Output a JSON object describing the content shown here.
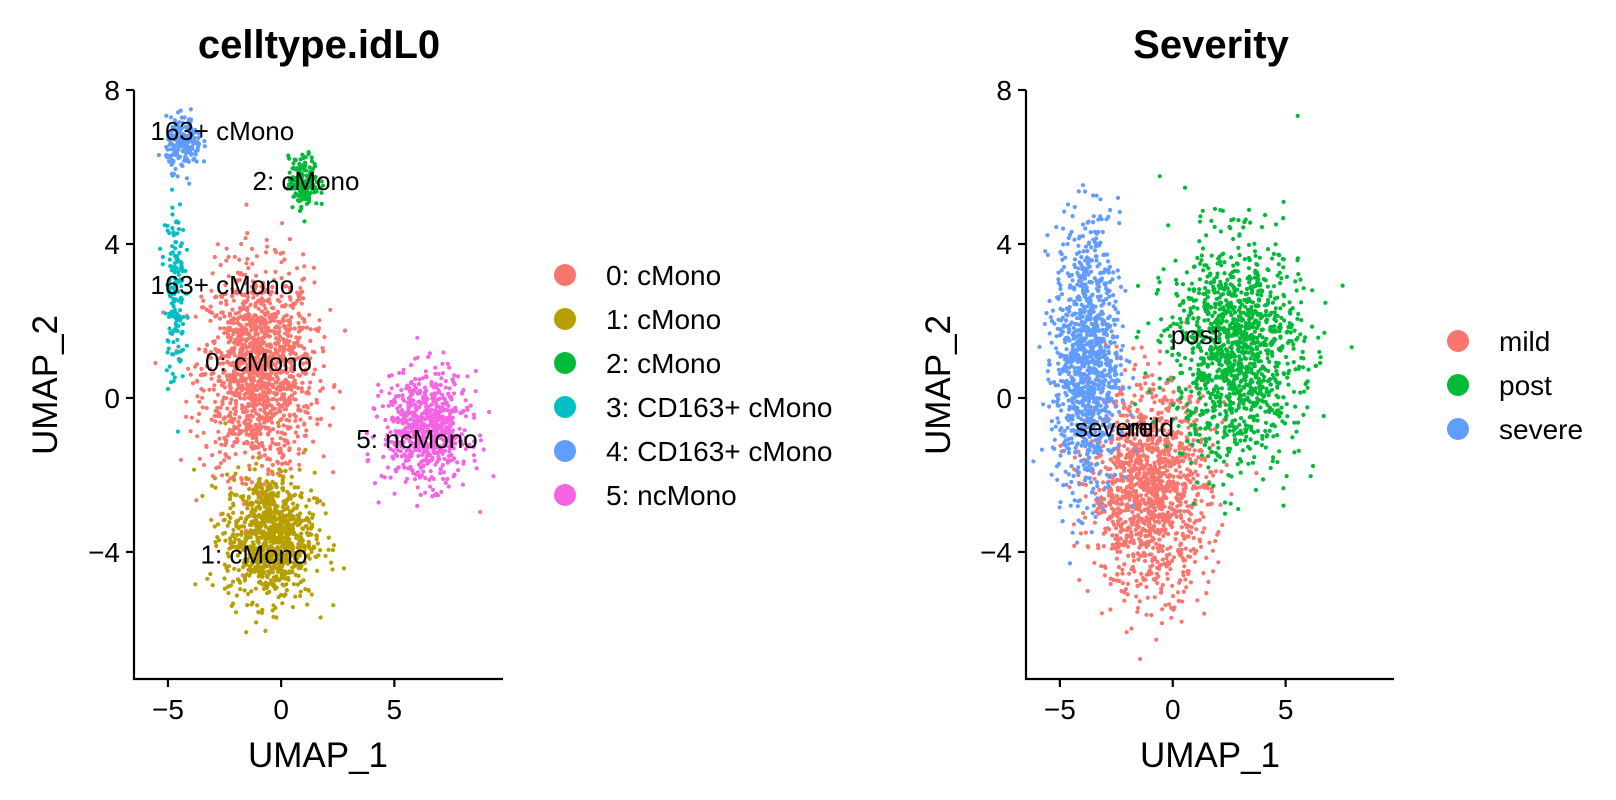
{
  "figure": {
    "background": "#ffffff"
  },
  "chart_data": [
    {
      "type": "scatter",
      "title": "celltype.idL0",
      "xlabel": "UMAP_1",
      "ylabel": "UMAP_2",
      "xlim": [
        -6.5,
        9.8
      ],
      "ylim": [
        -7.3,
        8.0
      ],
      "x_ticks": [
        -5,
        0,
        5
      ],
      "y_ticks": [
        -4,
        0,
        4,
        8
      ],
      "x_tick_labels": [
        "−5",
        "0",
        "5"
      ],
      "y_tick_labels": [
        "−4",
        "0",
        "4",
        "8"
      ],
      "grid": false,
      "legend_position": "right",
      "series": [
        {
          "name": "0: cMono",
          "color": "#F8766D",
          "centroid": [
            -1.0,
            0.7
          ],
          "spread": [
            2.2,
            2.4
          ],
          "count": 1400,
          "label_at": [
            -1.0,
            0.7
          ],
          "label": "0: cMono"
        },
        {
          "name": "1: cMono",
          "color": "#B79F00",
          "centroid": [
            -0.5,
            -3.6
          ],
          "spread": [
            1.8,
            1.5
          ],
          "count": 900,
          "label_at": [
            -1.2,
            -4.3
          ],
          "label": "1: cMono"
        },
        {
          "name": "2: cMono",
          "color": "#00BA38",
          "centroid": [
            1.0,
            5.6
          ],
          "spread": [
            0.6,
            0.6
          ],
          "count": 180,
          "label_at": [
            1.1,
            5.4
          ],
          "label": "2: cMono"
        },
        {
          "name": "3: CD163+ cMono",
          "color": "#00BFC4",
          "centroid": [
            -4.7,
            2.8
          ],
          "spread": [
            0.4,
            2.2
          ],
          "count": 160,
          "label_at": [
            -2.6,
            2.7
          ],
          "label": "163+ cMono"
        },
        {
          "name": "4: CD163+ cMono",
          "color": "#619CFF",
          "centroid": [
            -4.3,
            6.6
          ],
          "spread": [
            0.7,
            0.6
          ],
          "count": 200,
          "label_at": [
            -2.6,
            6.7
          ],
          "label": "163+ cMono"
        },
        {
          "name": "5: ncMono",
          "color": "#F564E3",
          "centroid": [
            6.4,
            -0.8
          ],
          "spread": [
            1.7,
            1.3
          ],
          "count": 700,
          "label_at": [
            6.0,
            -1.3
          ],
          "label": "5: ncMono"
        }
      ]
    },
    {
      "type": "scatter",
      "title": "Severity",
      "xlabel": "UMAP_1",
      "ylabel": "UMAP_2",
      "xlim": [
        -6.5,
        9.8
      ],
      "ylim": [
        -7.3,
        8.0
      ],
      "x_ticks": [
        -5,
        0,
        5
      ],
      "y_ticks": [
        -4,
        0,
        4,
        8
      ],
      "x_tick_labels": [
        "−5",
        "0",
        "5"
      ],
      "y_tick_labels": [
        "−4",
        "0",
        "4",
        "8"
      ],
      "grid": false,
      "legend_position": "right",
      "series": [
        {
          "name": "mild",
          "color": "#F8766D",
          "centroid": [
            -1.0,
            -2.4
          ],
          "spread": [
            2.4,
            2.4
          ],
          "count": 1300,
          "label_at": [
            -1.0,
            -1.0
          ],
          "label": "mild"
        },
        {
          "name": "post",
          "color": "#00BA38",
          "centroid": [
            2.8,
            1.2
          ],
          "spread": [
            2.6,
            2.6
          ],
          "count": 1300,
          "label_at": [
            1.0,
            1.4
          ],
          "label": "post"
        },
        {
          "name": "severe",
          "color": "#619CFF",
          "centroid": [
            -3.8,
            1.0
          ],
          "spread": [
            1.3,
            3.2
          ],
          "count": 1100,
          "label_at": [
            -2.6,
            -1.0
          ],
          "label": "severe"
        }
      ]
    }
  ]
}
